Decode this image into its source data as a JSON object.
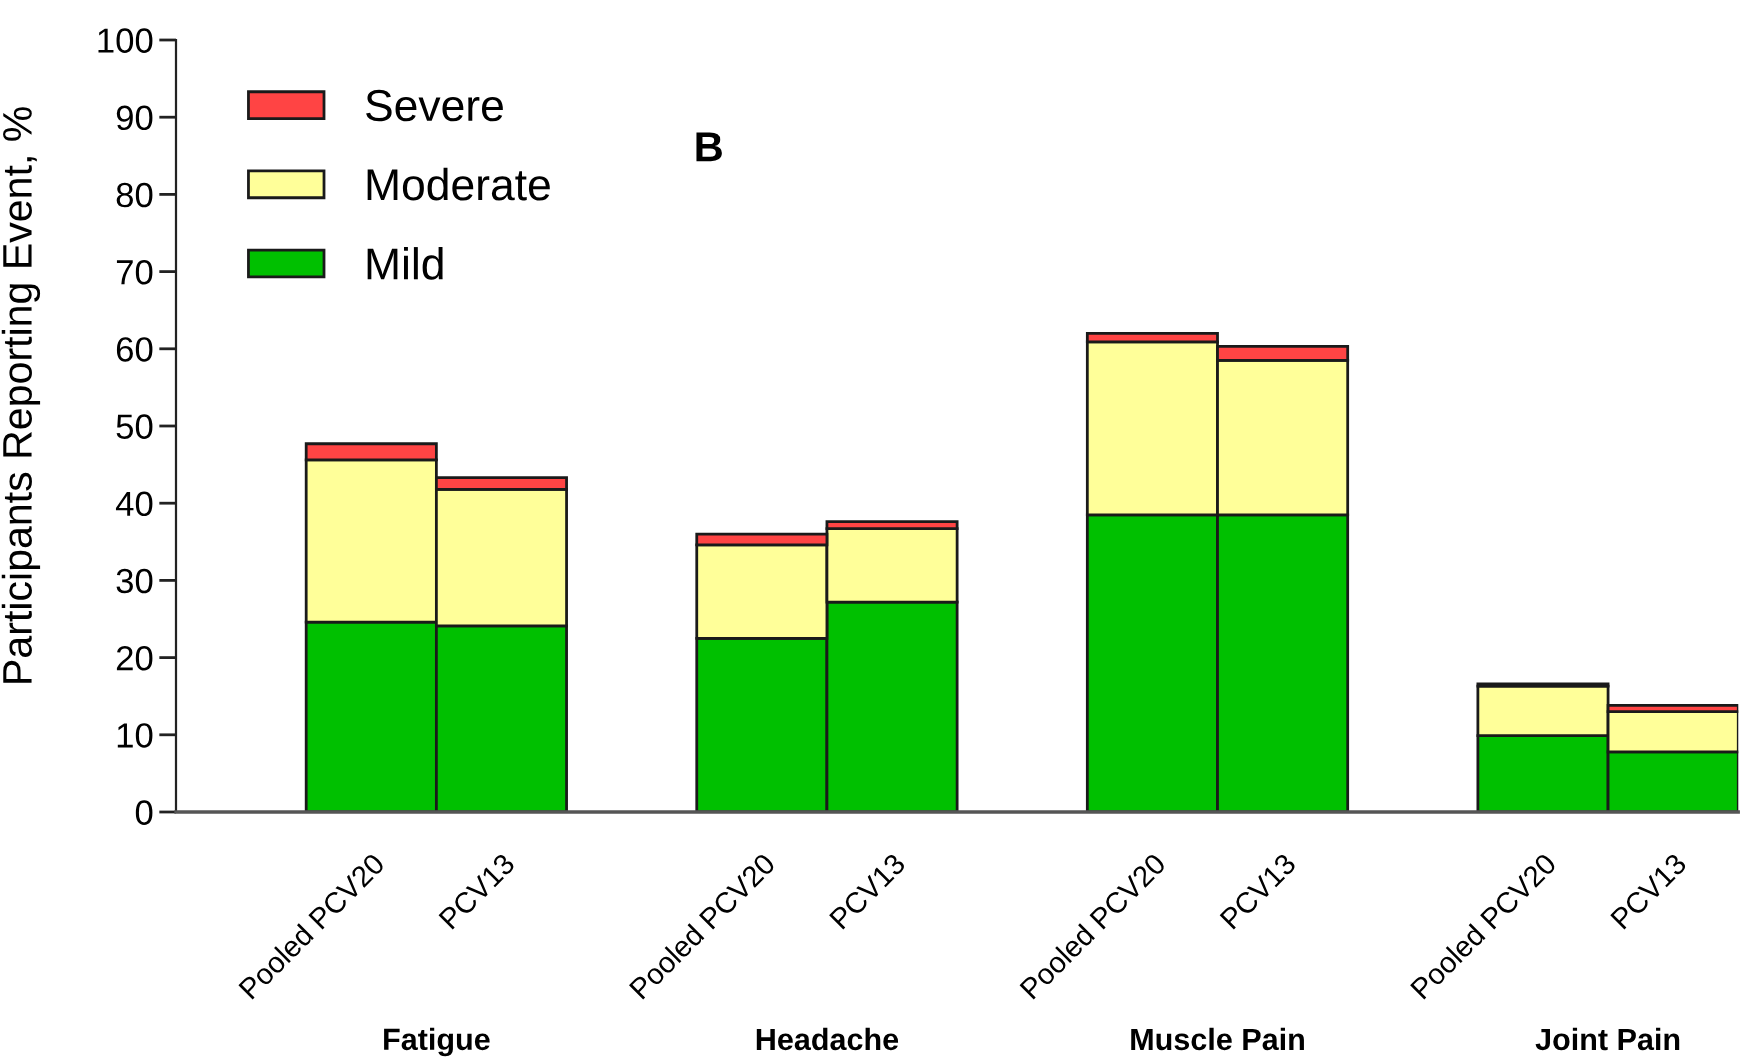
{
  "chart_data": {
    "type": "bar",
    "title": "B",
    "ylabel": "Participants Reporting Event, %",
    "categories": [
      "Pooled PCV20",
      "PCV13",
      "Pooled PCV20",
      "PCV13",
      "Pooled PCV20",
      "PCV13",
      "Pooled PCV20",
      "PCV13"
    ],
    "annotations": [
      "Fatigue",
      "Headache",
      "Muscle Pain",
      "Joint Pain"
    ],
    "stacked": true,
    "series": [
      {
        "name": "Mild",
        "color": "#00c000",
        "values": [
          24.6,
          24.1,
          22.5,
          27.2,
          38.5,
          38.5,
          9.9,
          7.8
        ]
      },
      {
        "name": "Moderate",
        "color": "#ffff99",
        "values": [
          21.0,
          17.7,
          12.1,
          9.5,
          22.4,
          20.0,
          6.4,
          5.2
        ]
      },
      {
        "name": "Severe",
        "color": "#ff4444",
        "values": [
          2.1,
          1.5,
          1.4,
          0.9,
          1.1,
          1.8,
          0.3,
          0.8
        ]
      }
    ],
    "ylim": [
      0,
      100
    ],
    "yticks": [
      0,
      10,
      20,
      30,
      40,
      50,
      60,
      70,
      80,
      90,
      100
    ],
    "grid": false,
    "legend": "top left"
  }
}
